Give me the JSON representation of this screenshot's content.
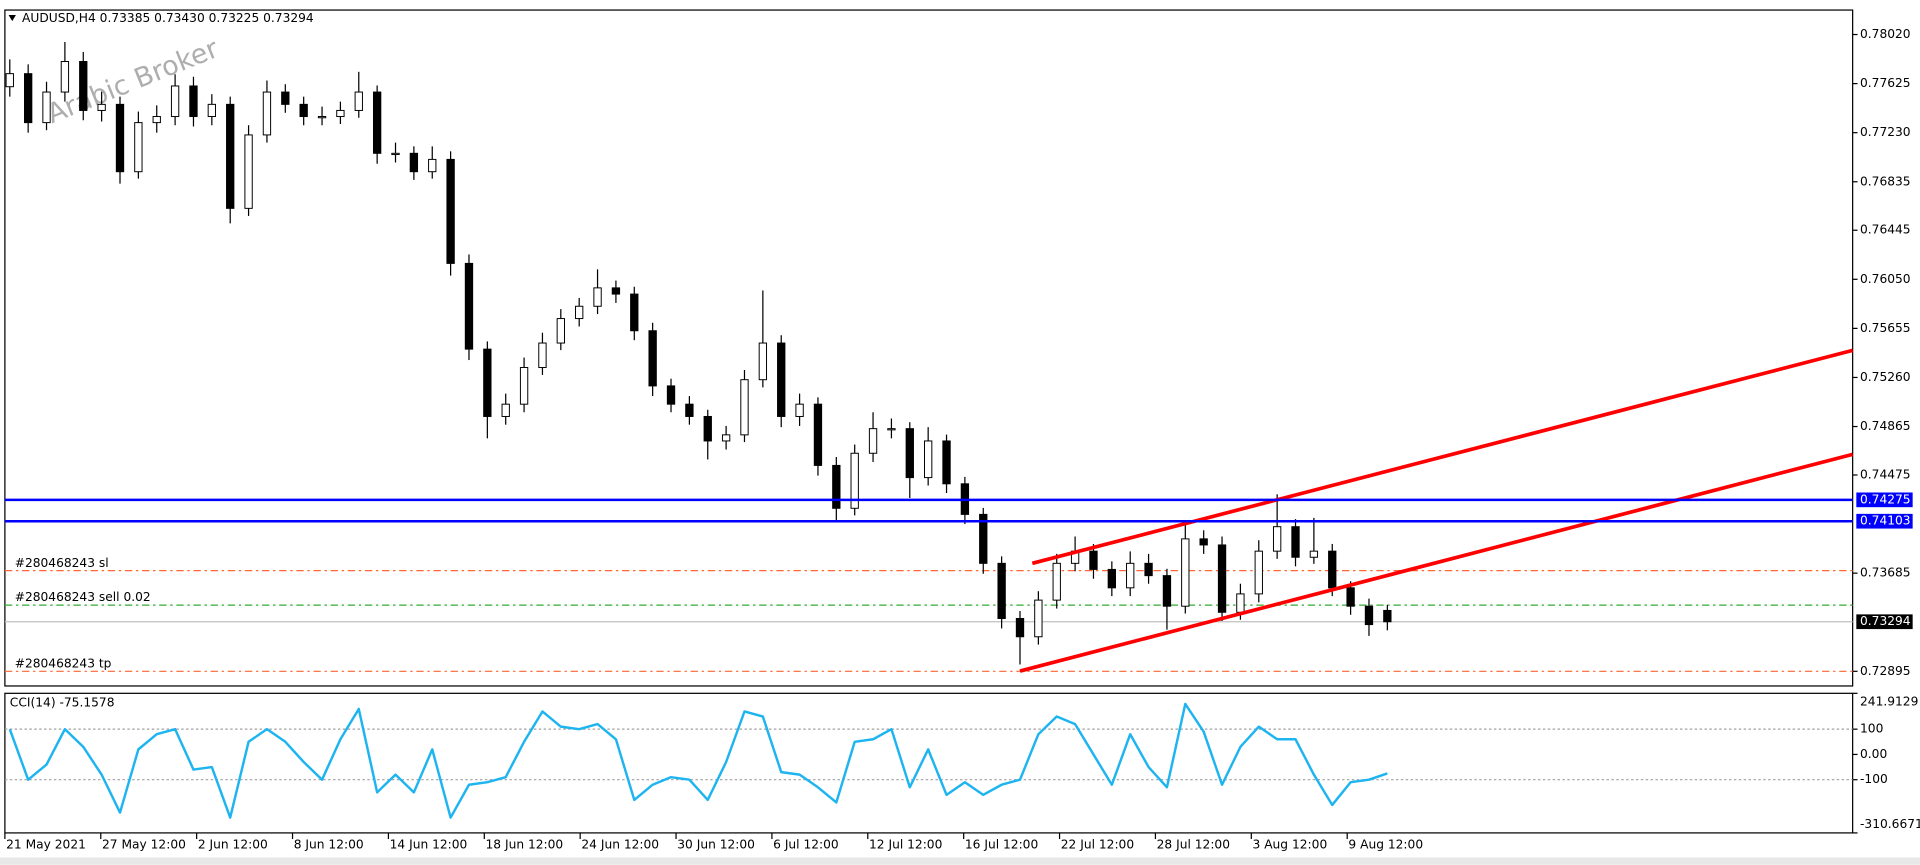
{
  "chart_data": [
    {
      "type": "candlestick",
      "title": "AUDUSD,H4 0.73385 0.73430 0.73225 0.73294",
      "watermark": "Arabic Broker",
      "open": [
        0.776,
        0.77705,
        0.77311,
        0.77557,
        0.77803,
        0.77409,
        0.77458,
        0.76916,
        0.77311,
        0.7736,
        0.77606,
        0.7736,
        0.77458,
        0.76621,
        0.77212,
        0.77557,
        0.77458,
        0.7736,
        0.7736,
        0.77409,
        0.77557,
        0.77064,
        0.77064,
        0.76916,
        0.77015,
        0.76178,
        0.75488,
        0.74946,
        0.75045,
        0.7534,
        0.75537,
        0.75734,
        0.75833,
        0.75981,
        0.75931,
        0.75636,
        0.75192,
        0.75045,
        0.74946,
        0.74749,
        0.74798,
        0.75242,
        0.75537,
        0.74946,
        0.75045,
        0.74552,
        0.74207,
        0.7465,
        0.74848,
        0.74848,
        0.74454,
        0.74749,
        0.74404,
        0.74158,
        0.73764,
        0.7332,
        0.73173,
        0.73468,
        0.73764,
        0.73862,
        0.73715,
        0.73567,
        0.73764,
        0.73665,
        0.73419,
        0.73961,
        0.73912,
        0.7337,
        0.73518,
        0.73862,
        0.74059,
        0.73813,
        0.73862,
        0.73567,
        0.73419,
        0.73385
      ],
      "high": [
        0.7782,
        0.7778,
        0.7764,
        0.7796,
        0.7788,
        0.7756,
        0.7752,
        0.774,
        0.7745,
        0.777,
        0.7768,
        0.7754,
        0.7752,
        0.7729,
        0.7765,
        0.7762,
        0.7752,
        0.7744,
        0.7748,
        0.7772,
        0.7761,
        0.7715,
        0.7712,
        0.7712,
        0.7708,
        0.7625,
        0.7555,
        0.7513,
        0.7542,
        0.7562,
        0.7581,
        0.759,
        0.7613,
        0.7604,
        0.7599,
        0.757,
        0.7525,
        0.7511,
        0.75,
        0.7487,
        0.7532,
        0.7596,
        0.756,
        0.7513,
        0.751,
        0.7462,
        0.7472,
        0.7498,
        0.7493,
        0.749,
        0.7486,
        0.748,
        0.7446,
        0.7421,
        0.7382,
        0.7338,
        0.7354,
        0.7384,
        0.7398,
        0.7392,
        0.7378,
        0.7386,
        0.7384,
        0.7372,
        0.7408,
        0.7403,
        0.7398,
        0.736,
        0.7395,
        0.7432,
        0.7412,
        0.7413,
        0.7392,
        0.7362,
        0.7348,
        0.7343
      ],
      "low": [
        0.7752,
        0.7723,
        0.7725,
        0.7748,
        0.7733,
        0.7732,
        0.7682,
        0.7686,
        0.7723,
        0.7729,
        0.7728,
        0.7729,
        0.765,
        0.7656,
        0.7715,
        0.7739,
        0.7729,
        0.7729,
        0.773,
        0.7735,
        0.7698,
        0.7699,
        0.7685,
        0.7686,
        0.7608,
        0.754,
        0.7477,
        0.7488,
        0.7498,
        0.7528,
        0.7548,
        0.7567,
        0.7577,
        0.7586,
        0.7556,
        0.7511,
        0.7498,
        0.7488,
        0.746,
        0.7468,
        0.7474,
        0.7518,
        0.7486,
        0.7487,
        0.7447,
        0.741,
        0.7415,
        0.7458,
        0.7477,
        0.7429,
        0.7439,
        0.7433,
        0.7408,
        0.7368,
        0.7324,
        0.7295,
        0.7311,
        0.734,
        0.737,
        0.7364,
        0.735,
        0.735,
        0.736,
        0.7323,
        0.7336,
        0.7384,
        0.733,
        0.7331,
        0.7345,
        0.738,
        0.7374,
        0.7376,
        0.735,
        0.7335,
        0.7318,
        0.73225
      ],
      "close": [
        0.77705,
        0.77311,
        0.77557,
        0.77803,
        0.77409,
        0.77458,
        0.76916,
        0.77311,
        0.7736,
        0.77606,
        0.7736,
        0.77458,
        0.76621,
        0.77212,
        0.77557,
        0.77458,
        0.7736,
        0.7736,
        0.77409,
        0.77557,
        0.77064,
        0.77064,
        0.76916,
        0.77015,
        0.76178,
        0.75488,
        0.74946,
        0.75045,
        0.7534,
        0.75537,
        0.75734,
        0.75833,
        0.75981,
        0.75931,
        0.75636,
        0.75192,
        0.75045,
        0.74946,
        0.74749,
        0.74798,
        0.75242,
        0.75537,
        0.74946,
        0.75045,
        0.74552,
        0.74207,
        0.7465,
        0.74848,
        0.74848,
        0.74454,
        0.74749,
        0.74404,
        0.74158,
        0.73764,
        0.7332,
        0.73173,
        0.73468,
        0.73764,
        0.73862,
        0.73715,
        0.73567,
        0.73764,
        0.73665,
        0.73419,
        0.73961,
        0.73912,
        0.7337,
        0.73518,
        0.73862,
        0.74059,
        0.73813,
        0.73862,
        0.73567,
        0.73419,
        0.73271,
        0.73294
      ],
      "color_up": "#ffffff",
      "color_down": "#000000",
      "ylim": [
        0.72777,
        0.78217
      ],
      "yticks": [
        {
          "value": 0.7802,
          "label": "0.78020"
        },
        0.77625,
        {
          "value": 0.7723,
          "label": "0.77230"
        },
        0.76835,
        0.76445,
        {
          "value": 0.7605,
          "label": "0.76050"
        },
        0.75655,
        {
          "value": 0.7526,
          "label": "0.75260"
        },
        0.74865,
        0.74475,
        0.73685,
        0.72895
      ],
      "xticks": [
        "21 May 2021",
        "27 May 12:00",
        "2 Jun 12:00",
        "8 Jun 12:00",
        "14 Jun 12:00",
        "18 Jun 12:00",
        "24 Jun 12:00",
        "30 Jun 12:00",
        "6 Jul 12:00",
        "12 Jul 12:00",
        "16 Jul 12:00",
        "22 Jul 12:00",
        "28 Jul 12:00",
        "3 Aug 12:00",
        "9 Aug 12:00"
      ],
      "levels": [
        {
          "value": 0.74275,
          "color": "#0000ff"
        },
        {
          "value": 0.74103,
          "color": "#0000ff"
        }
      ],
      "orders": [
        {
          "label": "#280468243 sl",
          "value": 0.73705,
          "color": "#ff6633"
        },
        {
          "label": "#280468243 sell 0.02",
          "value": 0.73428,
          "color": "#33aa33"
        },
        {
          "label": "#280468243 tp",
          "value": 0.72895,
          "color": "#ff6633"
        }
      ],
      "current": {
        "value": 0.73294,
        "color": "#c0c0c0"
      },
      "trendlines": [
        {
          "x": [
            55.67,
            100.33
          ],
          "y": [
            0.73764,
            0.75478
          ]
        },
        {
          "x": [
            55,
            100.33
          ],
          "y": [
            0.72897,
            0.74641
          ]
        }
      ],
      "trend_color": "#ff0000"
    },
    {
      "type": "line",
      "title": "CCI(14) -75.1578",
      "values": [
        100,
        -100,
        -40,
        100,
        30,
        -80,
        -230,
        20,
        80,
        100,
        -60,
        -50,
        -250,
        50,
        100,
        50,
        -30,
        -100,
        60,
        180,
        -150,
        -80,
        -150,
        20,
        -250,
        -120,
        -110,
        -90,
        50,
        170,
        110,
        100,
        120,
        60,
        -180,
        -120,
        -90,
        -100,
        -180,
        -30,
        170,
        150,
        -70,
        -80,
        -130,
        -190,
        50,
        60,
        100,
        -130,
        20,
        -160,
        -110,
        -160,
        -120,
        -100,
        80,
        150,
        120,
        0,
        -120,
        80,
        -50,
        -130,
        200,
        90,
        -120,
        30,
        110,
        60,
        60,
        -80,
        -200,
        -110,
        -100,
        -75.1578
      ],
      "color": "#1eb4f0",
      "ylim": [
        -310.6671,
        241.9129
      ],
      "yticks": [
        241.9129,
        100,
        {
          "value": 0,
          "label": "0.00"
        },
        -100,
        -310.6671
      ],
      "levels": [
        100,
        -100
      ]
    }
  ]
}
